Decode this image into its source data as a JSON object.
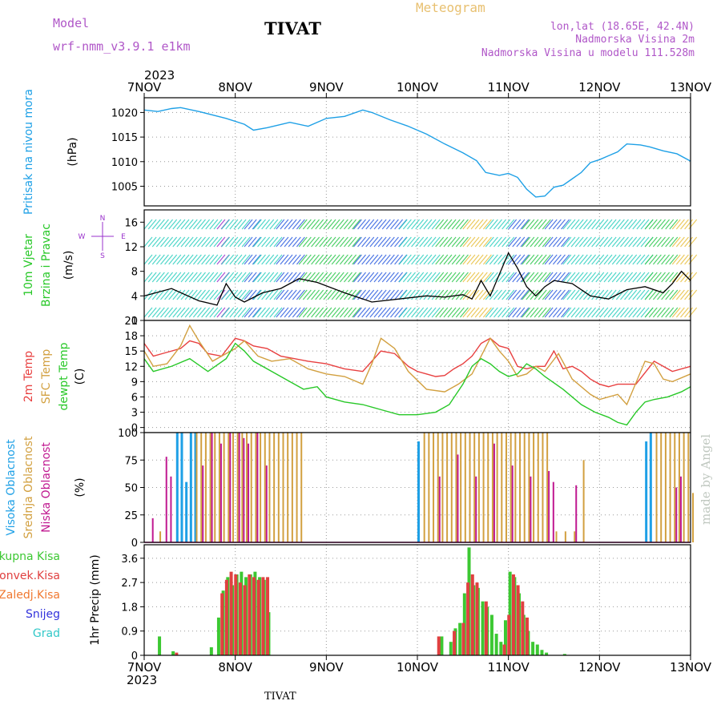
{
  "header": {
    "model_label": "Model",
    "model_name": "wrf-nmm_v3.9.1 e1km",
    "station": "TIVAT",
    "product": "Meteogram",
    "coords": "lon,lat (18.65E, 42.4N)",
    "elevation": "Nadmorska Visina 2m",
    "model_elevation": "Nadmorska Visina u modelu 111.528m",
    "footer_station": "TIVAT",
    "credit": "made by Angel"
  },
  "colors": {
    "pressure": "#1ea0e6",
    "t2m": "#e84040",
    "tsfc": "#d2a040",
    "dewpoint": "#28c828",
    "cloud_high": "#1ea0e6",
    "cloud_mid": "#d2a040",
    "cloud_low": "#c01890",
    "precip_total": "#3cc832",
    "precip_conv": "#e04040",
    "wind_purple": "#9a32cc",
    "grid": "#999999"
  },
  "chart_data": [
    {
      "type": "line",
      "panel": "pressure",
      "ylabel_lines": [
        "Pritisak na nivou mora"
      ],
      "unit": "(hPa)",
      "ylim": [
        1001,
        1023
      ],
      "yticks": [
        1005,
        1010,
        1015,
        1020
      ],
      "x_tick_labels": [
        "7NOV",
        "8NOV",
        "9NOV",
        "10NOV",
        "11NOV",
        "12NOV",
        "13NOV"
      ],
      "x_year": "2023",
      "series": [
        {
          "color_key": "pressure",
          "x": [
            0,
            0.15,
            0.3,
            0.4,
            0.6,
            0.9,
            1.1,
            1.2,
            1.35,
            1.6,
            1.8,
            2.0,
            2.2,
            2.4,
            2.5,
            2.7,
            2.9,
            3.1,
            3.3,
            3.5,
            3.65,
            3.75,
            3.9,
            4.0,
            4.1,
            4.2,
            4.3,
            4.4,
            4.5,
            4.6,
            4.7,
            4.8,
            4.9,
            5.0,
            5.1,
            5.2,
            5.3,
            5.45,
            5.55,
            5.7,
            5.85,
            6.0
          ],
          "y": [
            1020.5,
            1020.2,
            1020.8,
            1021.0,
            1020.2,
            1018.8,
            1017.6,
            1016.4,
            1016.9,
            1018.0,
            1017.2,
            1018.8,
            1019.2,
            1020.5,
            1020.0,
            1018.5,
            1017.2,
            1015.6,
            1013.6,
            1011.8,
            1010.2,
            1007.8,
            1007.2,
            1007.6,
            1006.8,
            1004.4,
            1002.8,
            1003.0,
            1004.8,
            1005.2,
            1006.5,
            1007.8,
            1009.8,
            1010.4,
            1011.2,
            1012.0,
            1013.6,
            1013.4,
            1013.0,
            1012.2,
            1011.6,
            1010.1
          ]
        }
      ]
    },
    {
      "type": "line",
      "panel": "wind",
      "ylabel_lines": [
        "10m Vjetar",
        "Brzina i Pravac"
      ],
      "unit": "(m/s)",
      "ylim": [
        0,
        18
      ],
      "yticks": [
        0,
        4,
        8,
        12,
        16
      ],
      "compass": [
        "N",
        "S",
        "W",
        "E"
      ],
      "series": [
        {
          "name": "speed",
          "x": [
            0,
            0.3,
            0.6,
            0.8,
            0.9,
            1.0,
            1.1,
            1.3,
            1.5,
            1.7,
            1.9,
            2.2,
            2.5,
            2.8,
            3.1,
            3.3,
            3.5,
            3.6,
            3.7,
            3.8,
            3.9,
            4.0,
            4.1,
            4.2,
            4.3,
            4.4,
            4.5,
            4.7,
            4.9,
            5.1,
            5.3,
            5.5,
            5.7,
            5.8,
            5.9,
            6.0
          ],
          "y": [
            4.0,
            5.2,
            3.2,
            2.5,
            6.0,
            3.8,
            3.0,
            4.5,
            5.2,
            6.8,
            6.2,
            4.5,
            3.0,
            3.5,
            4.0,
            3.8,
            4.2,
            3.5,
            6.5,
            4.0,
            7.5,
            11.0,
            8.5,
            5.5,
            4.0,
            5.5,
            6.5,
            6.0,
            4.0,
            3.5,
            5.0,
            5.5,
            4.5,
            6.0,
            8.0,
            6.5
          ]
        }
      ]
    },
    {
      "type": "line",
      "panel": "temperature",
      "ylabel_lines": [
        "2m Temp",
        "SFC Temp",
        "dewpt Temp"
      ],
      "unit": "(C)",
      "ylim": [
        -1,
        21
      ],
      "yticks": [
        0,
        3,
        6,
        9,
        12,
        15,
        18,
        21
      ],
      "series": [
        {
          "name": "2m Temp",
          "color_key": "t2m",
          "x": [
            0,
            0.1,
            0.2,
            0.4,
            0.5,
            0.6,
            0.7,
            0.85,
            1.0,
            1.1,
            1.2,
            1.35,
            1.5,
            1.65,
            1.8,
            2.0,
            2.2,
            2.4,
            2.6,
            2.75,
            2.9,
            3.0,
            3.1,
            3.2,
            3.3,
            3.4,
            3.5,
            3.6,
            3.7,
            3.8,
            3.9,
            4.0,
            4.1,
            4.2,
            4.3,
            4.4,
            4.5,
            4.6,
            4.7,
            4.8,
            4.9,
            5.0,
            5.1,
            5.2,
            5.4,
            5.6,
            5.7,
            5.8,
            6.0
          ],
          "y": [
            16.5,
            14.0,
            14.5,
            15.5,
            17.0,
            16.5,
            14.5,
            14.0,
            17.5,
            17.0,
            16.0,
            15.5,
            14.0,
            13.5,
            13.0,
            12.5,
            11.5,
            11.0,
            15.0,
            14.5,
            12.0,
            11.0,
            10.5,
            10.0,
            10.2,
            11.5,
            12.5,
            14.0,
            16.5,
            17.5,
            16.0,
            15.5,
            12.0,
            11.5,
            12.0,
            12.0,
            15.0,
            11.5,
            12.0,
            11.0,
            9.5,
            8.5,
            8.0,
            8.5,
            8.5,
            13.0,
            12.0,
            11.0,
            12.0
          ]
        },
        {
          "name": "SFC Temp",
          "color_key": "tsfc",
          "x": [
            0,
            0.1,
            0.25,
            0.4,
            0.5,
            0.6,
            0.75,
            1.0,
            1.1,
            1.25,
            1.4,
            1.6,
            1.8,
            2.0,
            2.2,
            2.4,
            2.5,
            2.6,
            2.75,
            2.9,
            3.1,
            3.3,
            3.45,
            3.6,
            3.7,
            3.8,
            3.9,
            4.0,
            4.1,
            4.2,
            4.3,
            4.4,
            4.55,
            4.7,
            4.9,
            5.0,
            5.1,
            5.2,
            5.3,
            5.5,
            5.6,
            5.7,
            5.8,
            6.0
          ],
          "y": [
            15.0,
            12.0,
            12.5,
            16.0,
            20.0,
            17.0,
            13.0,
            15.5,
            17.0,
            14.0,
            13.0,
            13.5,
            11.5,
            10.5,
            10.0,
            8.5,
            12.5,
            17.5,
            15.5,
            11.0,
            7.5,
            7.0,
            8.5,
            10.5,
            14.0,
            17.5,
            15.0,
            13.0,
            10.0,
            10.5,
            12.0,
            11.0,
            14.5,
            9.5,
            6.5,
            5.5,
            6.0,
            6.5,
            4.5,
            13.0,
            12.5,
            9.5,
            9.0,
            10.5
          ]
        },
        {
          "name": "dewpt Temp",
          "color_key": "dewpoint",
          "x": [
            0,
            0.1,
            0.3,
            0.5,
            0.7,
            0.9,
            1.0,
            1.1,
            1.2,
            1.4,
            1.6,
            1.75,
            1.9,
            2.0,
            2.2,
            2.4,
            2.6,
            2.8,
            3.0,
            3.2,
            3.35,
            3.5,
            3.6,
            3.7,
            3.8,
            3.9,
            4.0,
            4.1,
            4.2,
            4.3,
            4.4,
            4.6,
            4.8,
            4.95,
            5.1,
            5.2,
            5.3,
            5.4,
            5.5,
            5.6,
            5.75,
            5.9,
            6.0
          ],
          "y": [
            13.5,
            11.0,
            12.0,
            13.5,
            11.0,
            13.5,
            16.5,
            15.0,
            13.0,
            11.0,
            9.0,
            7.5,
            8.0,
            6.0,
            5.0,
            4.5,
            3.5,
            2.5,
            2.5,
            3.0,
            4.5,
            8.5,
            12.0,
            13.5,
            12.5,
            11.0,
            10.0,
            10.5,
            12.5,
            11.5,
            10.0,
            7.5,
            4.5,
            3.0,
            2.0,
            1.0,
            0.5,
            3.0,
            5.0,
            5.5,
            6.0,
            7.0,
            8.0
          ]
        }
      ]
    },
    {
      "type": "bar",
      "panel": "cloud",
      "ylabel_lines": [
        "Visoka Oblacnost",
        "Srednja Oblacnost",
        "Niska Oblacnost"
      ],
      "unit": "(%)",
      "ylim": [
        0,
        100
      ],
      "yticks": [
        0,
        25,
        50,
        75,
        100
      ],
      "series": [
        {
          "name": "Visoka Oblacnost",
          "color_key": "cloud_high",
          "x": [
            0.35,
            0.4,
            0.45,
            0.5,
            0.55,
            3.0,
            5.5,
            5.55
          ],
          "values": [
            100,
            100,
            55,
            100,
            100,
            92,
            92,
            100
          ]
        },
        {
          "name": "Srednja Oblacnost",
          "color_key": "cloud_mid",
          "x": [
            0.15,
            0.55,
            0.6,
            0.65,
            0.7,
            0.75,
            0.8,
            0.85,
            0.9,
            0.95,
            1.0,
            1.05,
            1.1,
            1.15,
            1.2,
            1.25,
            1.3,
            1.35,
            1.4,
            1.45,
            1.5,
            1.55,
            1.6,
            1.65,
            1.7,
            3.05,
            3.1,
            3.15,
            3.2,
            3.25,
            3.3,
            3.35,
            3.4,
            3.45,
            3.5,
            3.55,
            3.6,
            3.65,
            3.7,
            3.75,
            3.8,
            3.85,
            3.9,
            3.95,
            4.0,
            4.05,
            4.1,
            4.15,
            4.2,
            4.25,
            4.3,
            4.35,
            4.4,
            4.5,
            4.6,
            4.7,
            4.8,
            5.6,
            5.65,
            5.7,
            5.75,
            5.8,
            5.85,
            5.9,
            5.95,
            6.0
          ],
          "values": [
            10,
            100,
            100,
            100,
            100,
            100,
            100,
            100,
            100,
            100,
            100,
            100,
            100,
            100,
            100,
            100,
            100,
            100,
            100,
            100,
            100,
            100,
            100,
            100,
            100,
            100,
            100,
            100,
            100,
            100,
            100,
            100,
            100,
            100,
            100,
            100,
            100,
            100,
            100,
            100,
            100,
            100,
            100,
            100,
            100,
            100,
            100,
            100,
            100,
            100,
            100,
            100,
            100,
            10,
            10,
            10,
            75,
            100,
            100,
            100,
            100,
            100,
            100,
            100,
            100,
            45
          ]
        },
        {
          "name": "Niska Oblacnost",
          "color_key": "cloud_low",
          "x": [
            0.05,
            0.2,
            0.25,
            0.6,
            0.7,
            0.8,
            0.9,
            1.0,
            1.05,
            1.1,
            1.2,
            1.3,
            3.2,
            3.4,
            3.6,
            3.8,
            4.0,
            4.2,
            4.4,
            4.45,
            4.7,
            5.8,
            5.85
          ],
          "values": [
            22,
            78,
            60,
            70,
            100,
            90,
            100,
            100,
            95,
            90,
            100,
            70,
            60,
            80,
            60,
            90,
            70,
            60,
            65,
            55,
            52,
            50,
            60
          ]
        }
      ]
    },
    {
      "type": "bar",
      "panel": "precip",
      "ylabel_lines": [
        "1hr Precip (mm)"
      ],
      "legend": [
        "Ukupna Kisa",
        "Konvek.Kisa",
        "Zaledj.Kisa",
        "Snijeg",
        "Grad"
      ],
      "legend_colors": [
        "#3cc832",
        "#e04040",
        "#f07830",
        "#3232dc",
        "#32c8c8"
      ],
      "ylim": [
        0,
        4.1
      ],
      "yticks": [
        0,
        0.9,
        1.8,
        2.7,
        3.6
      ],
      "ytick_labels": [
        "0",
        "0.9",
        "1.8",
        "2.7",
        "3.6"
      ],
      "series": [
        {
          "name": "Ukupna Kisa",
          "color_key": "precip_total",
          "x": [
            0.15,
            0.3,
            0.72,
            0.8,
            0.85,
            0.9,
            0.95,
            1.0,
            1.05,
            1.1,
            1.15,
            1.2,
            1.25,
            1.3,
            1.35,
            3.25,
            3.35,
            3.4,
            3.45,
            3.5,
            3.55,
            3.6,
            3.65,
            3.7,
            3.75,
            3.8,
            3.85,
            3.9,
            3.95,
            4.0,
            4.05,
            4.1,
            4.15,
            4.2,
            4.25,
            4.3,
            4.35,
            4.4,
            4.6
          ],
          "values": [
            0.7,
            0.15,
            0.3,
            1.4,
            2.4,
            2.9,
            2.6,
            3.0,
            3.1,
            2.9,
            3.0,
            3.1,
            2.9,
            2.8,
            1.6,
            0.7,
            0.5,
            1.0,
            1.2,
            2.3,
            4.0,
            2.6,
            2.5,
            2.0,
            1.8,
            1.5,
            0.8,
            0.5,
            1.3,
            3.1,
            2.9,
            2.3,
            1.5,
            0.9,
            0.5,
            0.4,
            0.2,
            0.1,
            0.05
          ]
        },
        {
          "name": "Konvek.Kisa",
          "color_key": "precip_conv",
          "x": [
            0.32,
            0.82,
            0.87,
            0.92,
            0.97,
            1.02,
            1.07,
            1.12,
            1.17,
            1.22,
            1.27,
            1.32,
            3.2,
            3.37,
            3.47,
            3.52,
            3.57,
            3.62,
            3.72,
            3.92,
            3.97,
            4.02,
            4.07,
            4.12,
            4.17
          ],
          "values": [
            0.1,
            2.3,
            2.8,
            3.1,
            3.0,
            2.7,
            2.6,
            3.0,
            2.9,
            2.8,
            2.9,
            2.9,
            0.7,
            0.9,
            1.2,
            2.7,
            3.0,
            2.7,
            2.0,
            0.4,
            1.5,
            3.0,
            2.6,
            2.0,
            1.4
          ]
        }
      ]
    }
  ]
}
